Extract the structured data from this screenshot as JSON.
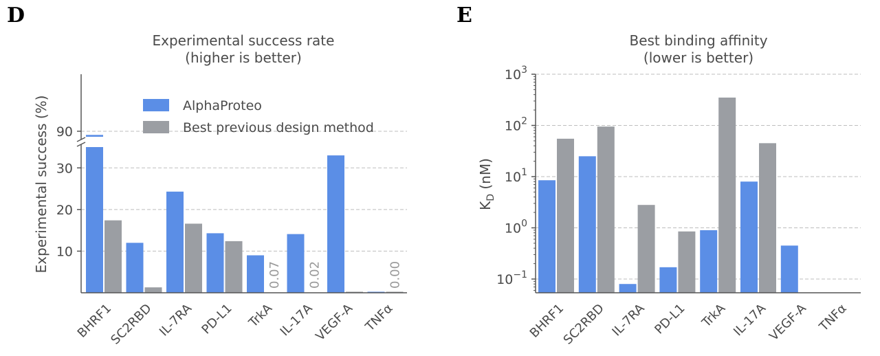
{
  "colors": {
    "alphaproteo": "#5b8ee6",
    "previous": "#9b9ea3",
    "axis": "#555555",
    "grid": "#bdbdbd",
    "text": "#4a4a4a"
  },
  "chart_data": [
    {
      "panel": "D",
      "type": "bar",
      "title_lines": [
        "Experimental success rate",
        "(higher is better)"
      ],
      "ylabel": "Experimental success (%)",
      "broken_axis": true,
      "lower_ylim": [
        0,
        35
      ],
      "upper_ylim": [
        87,
        121
      ],
      "yticks": [
        10,
        20,
        30,
        90
      ],
      "grid": "y",
      "legend_position": "top-right",
      "categories": [
        "BHRF1",
        "SC2RBD",
        "IL-7RA",
        "PD-L1",
        "TrkA",
        "IL-17A",
        "VEGF-A",
        "TNFα"
      ],
      "series": [
        {
          "name": "AlphaProteo",
          "values": [
            88.0,
            12.0,
            24.3,
            14.3,
            9.0,
            14.1,
            33.0,
            0.0
          ]
        },
        {
          "name": "Best previous design method",
          "values": [
            17.4,
            1.3,
            16.6,
            12.4,
            0.07,
            0.02,
            0.0,
            0.0
          ]
        }
      ],
      "data_labels": [
        {
          "category": "TrkA",
          "text": "0.07"
        },
        {
          "category": "IL-17A",
          "text": "0.02"
        },
        {
          "category": "TNFα",
          "text": "0.00"
        }
      ]
    },
    {
      "panel": "E",
      "type": "bar",
      "title_lines": [
        "Best binding affinity",
        "(lower is better)"
      ],
      "ylabel": "K_D (nM)",
      "yscale": "log",
      "ylim": [
        0.055,
        1000
      ],
      "yticks": [
        {
          "value": 0.1,
          "base": "10",
          "exp": "−1"
        },
        {
          "value": 1,
          "base": "10",
          "exp": "0"
        },
        {
          "value": 10,
          "base": "10",
          "exp": "1"
        },
        {
          "value": 100,
          "base": "10",
          "exp": "2"
        },
        {
          "value": 1000,
          "base": "10",
          "exp": "3"
        }
      ],
      "grid": "y",
      "categories": [
        "BHRF1",
        "SC2RBD",
        "IL-7RA",
        "PD-L1",
        "TrkA",
        "IL-17A",
        "VEGF-A",
        "TNFα"
      ],
      "series": [
        {
          "name": "AlphaProteo",
          "values": [
            8.5,
            25,
            0.08,
            0.17,
            0.9,
            8.0,
            0.45,
            null
          ]
        },
        {
          "name": "Best previous design method",
          "values": [
            55,
            95,
            2.8,
            0.85,
            350,
            45,
            null,
            null
          ]
        }
      ]
    }
  ]
}
